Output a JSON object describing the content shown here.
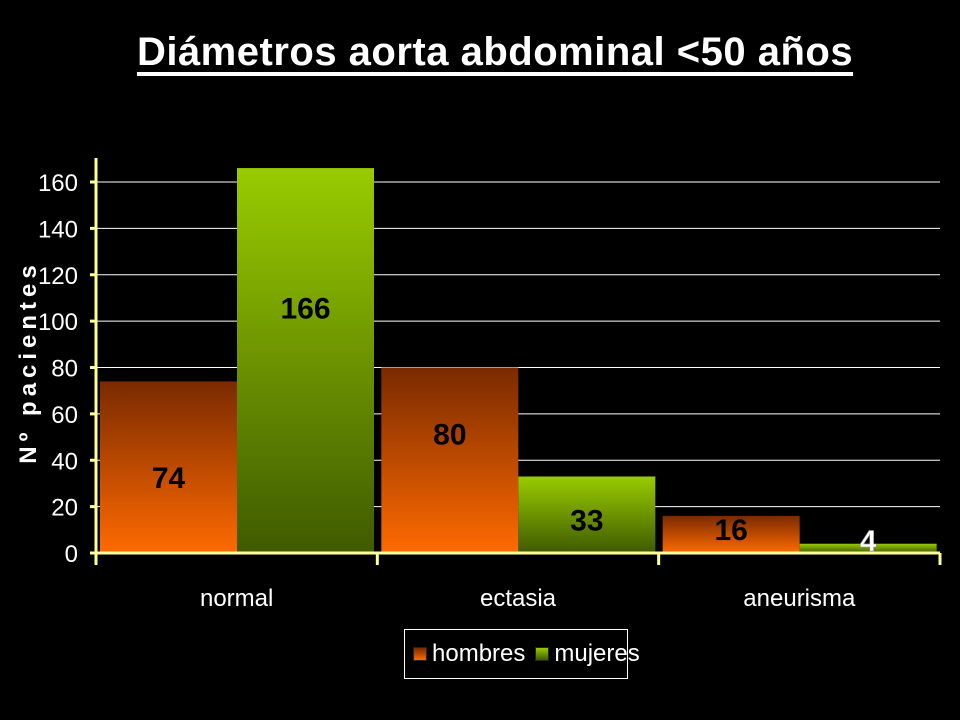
{
  "chart_data": {
    "type": "bar",
    "title": "Diámetros aorta abdominal <50 años",
    "ylabel": "Nº pacientes",
    "xlabel": "",
    "categories": [
      "normal",
      "ectasia",
      "aneurisma"
    ],
    "ylim": [
      0,
      160
    ],
    "yticks": [
      0,
      20,
      40,
      60,
      80,
      100,
      120,
      140,
      160
    ],
    "grid": true,
    "legend_position": "bottom",
    "series": [
      {
        "name": "hombres",
        "values": [
          74,
          80,
          16
        ],
        "labels": [
          "74",
          "80",
          "16"
        ],
        "color_top": "#7a2a00",
        "color_bottom": "#ff6a00",
        "label_color": "#000000"
      },
      {
        "name": "mujeres",
        "values": [
          166,
          33,
          4
        ],
        "labels": [
          "166",
          "33",
          "4"
        ],
        "color_top": "#99cc00",
        "color_bottom": "#3f5a00",
        "label_color": "#000000"
      }
    ]
  }
}
